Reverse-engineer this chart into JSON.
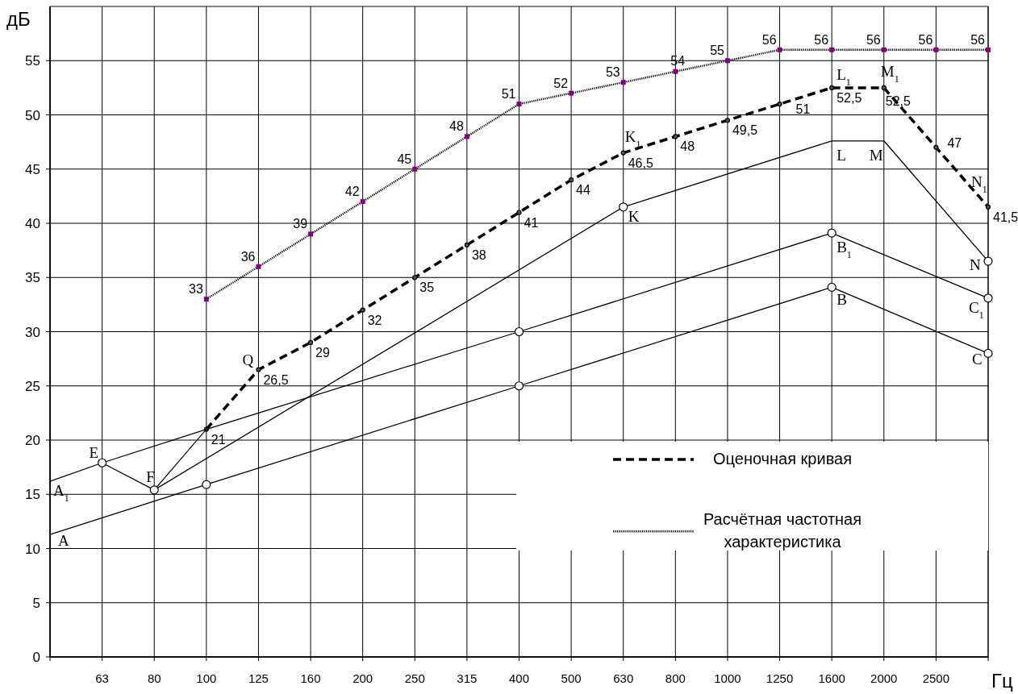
{
  "chart_data": {
    "type": "line",
    "xlabel": "Гц",
    "ylabel": "дБ",
    "ylim": [
      0,
      60
    ],
    "categories": [
      null,
      "63",
      "80",
      "100",
      "125",
      "160",
      "200",
      "250",
      "315",
      "400",
      "500",
      "630",
      "800",
      "1000",
      "1250",
      "1600",
      "2000",
      "2500",
      null
    ],
    "yticks": [
      0,
      5,
      10,
      15,
      20,
      25,
      30,
      35,
      40,
      45,
      50,
      55
    ],
    "grid": true,
    "legend": "bottom right",
    "series": [
      {
        "name": "Оценочная кривая",
        "line_style": "dashed",
        "marker": "circle",
        "color": "#000000",
        "values": [
          null,
          null,
          null,
          21,
          26.5,
          29,
          32,
          35,
          38,
          41,
          44,
          46.5,
          48,
          49.5,
          51,
          52.5,
          52.5,
          47,
          41.5
        ],
        "value_labels": [
          null,
          null,
          null,
          "21",
          "26,5",
          "29",
          "32",
          "35",
          "38",
          "41",
          "44",
          "46,5",
          "48",
          "49,5",
          "51",
          "52,5",
          "52,5",
          "47",
          "41,5"
        ]
      },
      {
        "name": "Расчётная частотная характеристика",
        "line_style": "dotted",
        "marker": "square",
        "color": "#000000",
        "colors": [
          null,
          null,
          null,
          "#800080",
          "#800080",
          "#800080",
          "#800080",
          "#800080",
          "#800080",
          "#800080",
          "#800080",
          "#800080",
          "#800080",
          "#800080",
          "#800080",
          "#800080",
          "#800080",
          "#800080",
          "#800080"
        ],
        "values": [
          null,
          null,
          null,
          33,
          36,
          39,
          42,
          45,
          48,
          51,
          52,
          53,
          54,
          55,
          56,
          56,
          56,
          56,
          56
        ],
        "value_labels": [
          null,
          null,
          null,
          "33",
          "36",
          "39",
          "42",
          "45",
          "48",
          "51",
          "52",
          "53",
          "54",
          "55",
          "56",
          "56",
          "56",
          "56",
          "56"
        ]
      },
      {
        "line_style": "solid",
        "marker": "none",
        "color": "#000000",
        "values": [
          11.3,
          null,
          null,
          15.9,
          null,
          null,
          null,
          null,
          null,
          25,
          null,
          null,
          null,
          null,
          null,
          34.1,
          null,
          null,
          28
        ]
      },
      {
        "line_style": "solid",
        "marker": "none",
        "color": "#000000",
        "values": [
          16.2,
          17.9,
          null,
          21,
          null,
          null,
          null,
          null,
          null,
          30,
          null,
          null,
          null,
          null,
          null,
          39.1,
          null,
          null,
          33.1
        ]
      },
      {
        "line_style": "solid",
        "marker": "none",
        "color": "#000000",
        "values": [
          null,
          17.9,
          15.4,
          21,
          null,
          null,
          null,
          null,
          null,
          null,
          null,
          null,
          null,
          null,
          null,
          null,
          null,
          null,
          null
        ]
      },
      {
        "line_style": "solid",
        "marker": "none",
        "color": "#000000",
        "values": [
          null,
          null,
          15.4,
          null,
          null,
          null,
          null,
          null,
          null,
          null,
          null,
          41.5,
          null,
          null,
          null,
          47.6,
          47.6,
          null,
          36.5
        ]
      },
      {
        "type": "scatter",
        "marker": "circle",
        "color": "#000000",
        "values": [
          null,
          null,
          null,
          15.9,
          null,
          null,
          null,
          null,
          null,
          25,
          null,
          null,
          null,
          null,
          null,
          34.1,
          null,
          null,
          28
        ]
      },
      {
        "type": "scatter",
        "marker": "circle",
        "color": "#000000",
        "values": [
          null,
          17.9,
          null,
          null,
          null,
          null,
          null,
          null,
          null,
          30,
          null,
          null,
          null,
          null,
          null,
          39.1,
          null,
          null,
          33.1
        ]
      },
      {
        "type": "scatter",
        "marker": "circle",
        "color": "#000000",
        "values": [
          null,
          null,
          15.4,
          null,
          null,
          null,
          null,
          null,
          null,
          null,
          null,
          41.5,
          null,
          null,
          null,
          null,
          null,
          null,
          36.5
        ]
      }
    ],
    "annotations": [
      {
        "text": "A",
        "y": 11.3
      },
      {
        "text": "A$_{1}$",
        "y": 16.2
      },
      {
        "text": "E",
        "x": "63",
        "y": 17.9
      },
      {
        "text": "F",
        "x": "80",
        "y": 15.4
      },
      {
        "text": "K",
        "x": "630",
        "y": 41.5
      },
      {
        "text": "L",
        "x": "1600",
        "y": 47.6
      },
      {
        "text": "M",
        "x": "2000",
        "y": 47.6
      },
      "N",
      {
        "text": "B",
        "x": "1600",
        "y": 34.1
      },
      {
        "text": "B$_{1}$",
        "x": "1600",
        "y": 39.1
      },
      {
        "text": "C",
        "y": 28
      },
      {
        "text": "C$_{1}$",
        "y": 33.1
      },
      {
        "text": "Q",
        "x": "125",
        "y": 26.5
      },
      {
        "text": "K$_{1}$",
        "x": "630",
        "y": 46.5
      },
      {
        "text": "L$_{1}$",
        "x": "1600",
        "y": 52.5
      },
      {
        "text": "M$_{1}$",
        "x": "2000",
        "y": 52.5
      },
      "N$_{1}$"
    ]
  }
}
